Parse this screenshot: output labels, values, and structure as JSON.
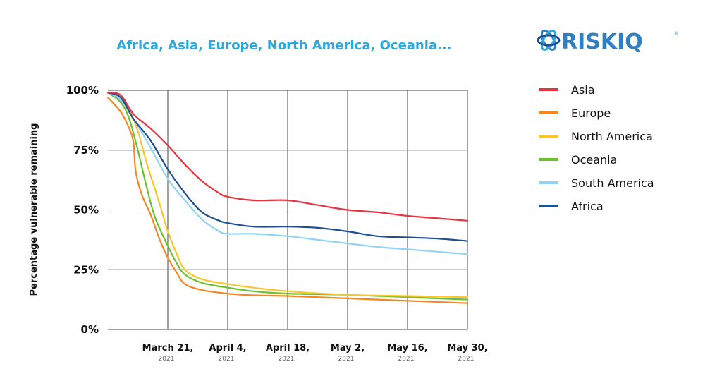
{
  "chart_data": {
    "type": "line",
    "title": "Africa, Asia, Europe, North America, Oceania...",
    "ylabel": "Percentage vulnerable remaining",
    "xlabel": "",
    "y_ticks": [
      "100%",
      "75%",
      "50%",
      "25%",
      "0%"
    ],
    "ylim": [
      0,
      100
    ],
    "x_ticks": [
      {
        "label": "March 21,",
        "year": "2021"
      },
      {
        "label": "April 4,",
        "year": "2021"
      },
      {
        "label": "April 18,",
        "year": "2021"
      },
      {
        "label": "May 2,",
        "year": "2021"
      },
      {
        "label": "May 16,",
        "year": "2021"
      },
      {
        "label": "May 30,",
        "year": "2021"
      }
    ],
    "x_days": [
      0,
      14,
      28,
      42,
      56,
      70
    ],
    "x_domain": [
      -14,
      70
    ],
    "grid": true,
    "legend_position": "right",
    "series": [
      {
        "name": "Asia",
        "color": "#e8323f",
        "points": [
          [
            -14,
            99
          ],
          [
            -11,
            98
          ],
          [
            -8,
            90
          ],
          [
            -4,
            84
          ],
          [
            0,
            77
          ],
          [
            4,
            69
          ],
          [
            8,
            62
          ],
          [
            12,
            57
          ],
          [
            14,
            55.5
          ],
          [
            20,
            54
          ],
          [
            28,
            54
          ],
          [
            35,
            52
          ],
          [
            42,
            50
          ],
          [
            49,
            49
          ],
          [
            56,
            47.5
          ],
          [
            63,
            46.5
          ],
          [
            70,
            45.5
          ]
        ]
      },
      {
        "name": "Europe",
        "color": "#f6861f",
        "points": [
          [
            -14,
            97
          ],
          [
            -11,
            91
          ],
          [
            -9,
            84
          ],
          [
            -8,
            78
          ],
          [
            -7.5,
            66
          ],
          [
            -6,
            56
          ],
          [
            -4,
            48
          ],
          [
            -2,
            38
          ],
          [
            0,
            30
          ],
          [
            2,
            24
          ],
          [
            4,
            19
          ],
          [
            8,
            16.5
          ],
          [
            14,
            15
          ],
          [
            20,
            14.3
          ],
          [
            28,
            14
          ],
          [
            42,
            13
          ],
          [
            56,
            12
          ],
          [
            70,
            11
          ]
        ]
      },
      {
        "name": "North America",
        "color": "#f9c62a",
        "points": [
          [
            -14,
            99
          ],
          [
            -11,
            97
          ],
          [
            -9,
            92
          ],
          [
            -7,
            83
          ],
          [
            -5,
            70
          ],
          [
            -2,
            53
          ],
          [
            0,
            41
          ],
          [
            2,
            32
          ],
          [
            4,
            25
          ],
          [
            8,
            21
          ],
          [
            14,
            19
          ],
          [
            20,
            17.5
          ],
          [
            28,
            16
          ],
          [
            42,
            14.5
          ],
          [
            56,
            14
          ],
          [
            70,
            13.5
          ]
        ]
      },
      {
        "name": "Oceania",
        "color": "#6cc12e",
        "points": [
          [
            -14,
            99
          ],
          [
            -11,
            95
          ],
          [
            -9,
            88
          ],
          [
            -7,
            75
          ],
          [
            -5,
            60
          ],
          [
            -3,
            47
          ],
          [
            0,
            35
          ],
          [
            2,
            28
          ],
          [
            4,
            23
          ],
          [
            8,
            19.5
          ],
          [
            14,
            17.5
          ],
          [
            20,
            16
          ],
          [
            28,
            15
          ],
          [
            42,
            14.5
          ],
          [
            56,
            13.5
          ],
          [
            70,
            12.5
          ]
        ]
      },
      {
        "name": "South America",
        "color": "#8fd3f5",
        "points": [
          [
            -14,
            99
          ],
          [
            -11,
            96
          ],
          [
            -8,
            88
          ],
          [
            -4,
            76
          ],
          [
            0,
            63
          ],
          [
            4,
            54
          ],
          [
            8,
            46
          ],
          [
            12,
            41
          ],
          [
            14,
            40
          ],
          [
            20,
            40
          ],
          [
            28,
            39
          ],
          [
            35,
            37.5
          ],
          [
            42,
            36
          ],
          [
            49,
            34.5
          ],
          [
            56,
            33.5
          ],
          [
            63,
            32.5
          ],
          [
            70,
            31.5
          ]
        ]
      },
      {
        "name": "Africa",
        "color": "#1d4f91",
        "points": [
          [
            -14,
            99
          ],
          [
            -11,
            97
          ],
          [
            -8,
            88
          ],
          [
            -4,
            79
          ],
          [
            0,
            67
          ],
          [
            4,
            57
          ],
          [
            8,
            49
          ],
          [
            12,
            45.5
          ],
          [
            14,
            44.5
          ],
          [
            20,
            43
          ],
          [
            28,
            43
          ],
          [
            35,
            42.5
          ],
          [
            42,
            41
          ],
          [
            49,
            39
          ],
          [
            56,
            38.5
          ],
          [
            63,
            38
          ],
          [
            70,
            37
          ]
        ]
      }
    ]
  },
  "logo": {
    "text": "RISKIQ",
    "mark": "®"
  }
}
